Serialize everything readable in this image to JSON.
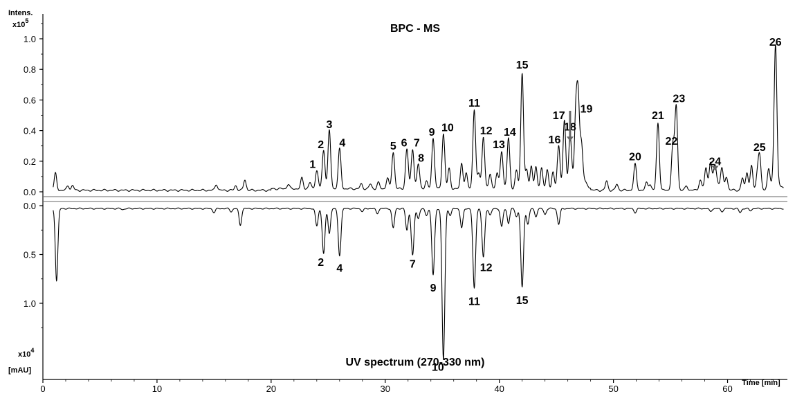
{
  "chart_data": {
    "type": "line",
    "x_axis": {
      "label": "Time [min]",
      "range": [
        0,
        65
      ],
      "ticks": [
        0,
        10,
        20,
        30,
        40,
        50,
        60
      ]
    },
    "panels": [
      {
        "id": "ms",
        "title": "BPC - MS",
        "y_label_line1": "Intens.",
        "y_label_line2": "x10",
        "y_label_exp": "5",
        "y_range": [
          0,
          1.1
        ],
        "y_ticks": [
          "0.0",
          "0.2",
          "0.4",
          "0.6",
          "0.8",
          "1.0"
        ],
        "y_tick_values": [
          0,
          0.2,
          0.4,
          0.6,
          0.8,
          1.0
        ],
        "baseline": 0.01,
        "small_peaks": [
          [
            1.1,
            0.11
          ],
          [
            2.2,
            0.03
          ],
          [
            2.6,
            0.03
          ],
          [
            15.2,
            0.04
          ],
          [
            16.9,
            0.03
          ],
          [
            17.7,
            0.07
          ],
          [
            21.5,
            0.03
          ],
          [
            22.7,
            0.07
          ],
          [
            23.4,
            0.04
          ],
          [
            27.9,
            0.03
          ],
          [
            28.7,
            0.03
          ],
          [
            29.4,
            0.04
          ],
          [
            30.2,
            0.07
          ],
          [
            33.6,
            0.05
          ],
          [
            35.6,
            0.13
          ],
          [
            36.7,
            0.17
          ],
          [
            37.1,
            0.1
          ],
          [
            38.2,
            0.1
          ],
          [
            39.2,
            0.1
          ],
          [
            39.8,
            0.1
          ],
          [
            41.5,
            0.12
          ],
          [
            42.4,
            0.12
          ],
          [
            42.8,
            0.15
          ],
          [
            43.2,
            0.14
          ],
          [
            43.7,
            0.14
          ],
          [
            44.2,
            0.12
          ],
          [
            44.7,
            0.11
          ],
          [
            46.7,
            0.35
          ],
          [
            47.2,
            0.2
          ],
          [
            49.4,
            0.06
          ],
          [
            50.3,
            0.04
          ],
          [
            52.9,
            0.05
          ],
          [
            53.2,
            0.04
          ],
          [
            56.4,
            0.03
          ],
          [
            57.6,
            0.06
          ],
          [
            58.1,
            0.12
          ],
          [
            58.5,
            0.14
          ],
          [
            59.5,
            0.12
          ],
          [
            59.9,
            0.08
          ],
          [
            61.3,
            0.08
          ],
          [
            61.7,
            0.12
          ],
          [
            62.1,
            0.16
          ],
          [
            62.6,
            0.09
          ],
          [
            63.6,
            0.13
          ]
        ],
        "peaks": [
          {
            "label": "1",
            "t": 24.0,
            "h": 0.12
          },
          {
            "label": "2",
            "t": 24.6,
            "h": 0.25
          },
          {
            "label": "3",
            "t": 25.1,
            "h": 0.38
          },
          {
            "label": "4",
            "t": 26.0,
            "h": 0.26
          },
          {
            "label": "5",
            "t": 30.7,
            "h": 0.24
          },
          {
            "label": "6",
            "t": 31.9,
            "h": 0.26
          },
          {
            "label": "7",
            "t": 32.4,
            "h": 0.26
          },
          {
            "label": "8",
            "t": 32.9,
            "h": 0.16
          },
          {
            "label": "9",
            "t": 34.2,
            "h": 0.33
          },
          {
            "label": "10",
            "t": 35.1,
            "h": 0.36
          },
          {
            "label": "11",
            "t": 37.8,
            "h": 0.52
          },
          {
            "label": "12",
            "t": 38.6,
            "h": 0.34
          },
          {
            "label": "13",
            "t": 40.2,
            "h": 0.25
          },
          {
            "label": "14",
            "t": 40.8,
            "h": 0.33
          },
          {
            "label": "15",
            "t": 42.0,
            "h": 0.76
          },
          {
            "label": "16",
            "t": 45.2,
            "h": 0.28
          },
          {
            "label": "17",
            "t": 45.7,
            "h": 0.44
          },
          {
            "label": "18",
            "t": 46.2,
            "h": 0.32
          },
          {
            "label": "19",
            "t": 46.9,
            "h": 0.49
          },
          {
            "label": "20",
            "t": 51.9,
            "h": 0.17
          },
          {
            "label": "21",
            "t": 53.9,
            "h": 0.44
          },
          {
            "label": "22",
            "t": 55.2,
            "h": 0.29
          },
          {
            "label": "23",
            "t": 55.5,
            "h": 0.55
          },
          {
            "label": "24",
            "t": 58.9,
            "h": 0.12
          },
          {
            "label": "25",
            "t": 62.8,
            "h": 0.23
          },
          {
            "label": "26",
            "t": 64.2,
            "h": 0.91
          }
        ]
      },
      {
        "id": "uv",
        "title": "UV spectrum (270-330 nm)",
        "y_label_line1": "x10",
        "y_label_exp": "4",
        "y_label_line2": "[mAU]",
        "inverted": true,
        "y_range": [
          0,
          1.4
        ],
        "y_ticks": [
          "0.0",
          "0.5",
          "1.0"
        ],
        "y_tick_values": [
          0,
          0.5,
          1.0
        ],
        "baseline": 0.03,
        "small_peaks": [
          [
            1.2,
            0.74
          ],
          [
            7.0,
            0.01
          ],
          [
            15.0,
            0.04
          ],
          [
            16.5,
            0.03
          ],
          [
            17.3,
            0.17
          ],
          [
            24.0,
            0.18
          ],
          [
            25.1,
            0.25
          ],
          [
            28.0,
            0.03
          ],
          [
            29.3,
            0.05
          ],
          [
            30.7,
            0.2
          ],
          [
            31.9,
            0.22
          ],
          [
            32.9,
            0.1
          ],
          [
            33.6,
            0.07
          ],
          [
            35.7,
            0.07
          ],
          [
            36.7,
            0.2
          ],
          [
            39.2,
            0.07
          ],
          [
            40.2,
            0.19
          ],
          [
            40.8,
            0.15
          ],
          [
            41.5,
            0.08
          ],
          [
            42.5,
            0.16
          ],
          [
            43.2,
            0.08
          ],
          [
            44.0,
            0.06
          ],
          [
            45.2,
            0.16
          ],
          [
            51.9,
            0.04
          ],
          [
            58.5,
            0.03
          ],
          [
            59.5,
            0.03
          ],
          [
            61.1,
            0.04
          ],
          [
            62.0,
            0.02
          ]
        ],
        "peaks": [
          {
            "label": "2",
            "t": 24.6,
            "h": 0.46
          },
          {
            "label": "4",
            "t": 26.0,
            "h": 0.48
          },
          {
            "label": "7",
            "t": 32.4,
            "h": 0.48
          },
          {
            "label": "9",
            "t": 34.2,
            "h": 0.68
          },
          {
            "label": "10",
            "t": 35.1,
            "h": 1.55
          },
          {
            "label": "11",
            "t": 37.8,
            "h": 0.82
          },
          {
            "label": "12",
            "t": 38.6,
            "h": 0.5
          },
          {
            "label": "15",
            "t": 42.0,
            "h": 0.81
          }
        ]
      }
    ]
  }
}
